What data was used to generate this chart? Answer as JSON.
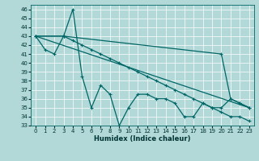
{
  "background_color": "#b2d8d8",
  "grid_color": "#ffffff",
  "line_color": "#006666",
  "xlabel": "Humidex (Indice chaleur)",
  "ylim": [
    33,
    46.5
  ],
  "xlim": [
    -0.5,
    23.5
  ],
  "yticks": [
    33,
    34,
    35,
    36,
    37,
    38,
    39,
    40,
    41,
    42,
    43,
    44,
    45,
    46
  ],
  "xticks": [
    0,
    1,
    2,
    3,
    4,
    5,
    6,
    7,
    8,
    9,
    10,
    11,
    12,
    13,
    14,
    15,
    16,
    17,
    18,
    19,
    20,
    21,
    22,
    23
  ],
  "line1_x": [
    0,
    1,
    2,
    3,
    4,
    5,
    6,
    7,
    8,
    9,
    10,
    11,
    12,
    13,
    14,
    15,
    16,
    17,
    18,
    19,
    20,
    21,
    22,
    23
  ],
  "line1_y": [
    43,
    41.5,
    41,
    43,
    46,
    38.5,
    35,
    37.5,
    36.5,
    33,
    35,
    36.5,
    36.5,
    36,
    36,
    35.5,
    34,
    34,
    35.5,
    35,
    35,
    36,
    35.5,
    35
  ],
  "line2_x": [
    0,
    3,
    20,
    21,
    22,
    23
  ],
  "line2_y": [
    43,
    43,
    41,
    36,
    35.5,
    35
  ],
  "line3_x": [
    0,
    23
  ],
  "line3_y": [
    43,
    35
  ],
  "line4_x": [
    0,
    3,
    4,
    5,
    6,
    7,
    8,
    9,
    10,
    11,
    12,
    13,
    14,
    15,
    16,
    17,
    18,
    19,
    20,
    21,
    22,
    23
  ],
  "line4_y": [
    43,
    43,
    42.5,
    42,
    41.5,
    41,
    40.5,
    40,
    39.5,
    39,
    38.5,
    38,
    37.5,
    37,
    36.5,
    36,
    35.5,
    35,
    34.5,
    34,
    34,
    33.5
  ]
}
